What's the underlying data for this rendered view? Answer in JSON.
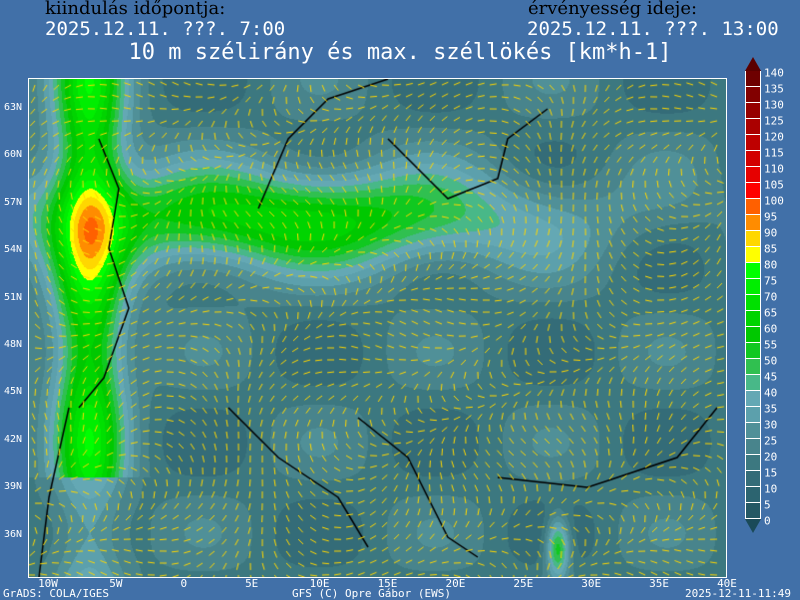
{
  "header": {
    "init_label": "kiindulás időpontja:",
    "init_value": "2025.12.11. ???. 7:00",
    "valid_label": "érvényesség ideje:",
    "valid_value": "2025.12.11. ???. 13:00",
    "title": "10 m szélirány és max. széllökés [km*h-1]"
  },
  "map": {
    "lat_labels": [
      "63N",
      "60N",
      "57N",
      "54N",
      "51N",
      "48N",
      "45N",
      "42N",
      "39N",
      "36N"
    ],
    "lon_labels": [
      "10W",
      "5W",
      "0",
      "5E",
      "10E",
      "15E",
      "20E",
      "25E",
      "30E",
      "35E",
      "40E"
    ],
    "wind_arrow_color": "#ffd700",
    "coastline_color": "#000000"
  },
  "legend": {
    "ticks": [
      "140",
      "135",
      "130",
      "125",
      "120",
      "115",
      "110",
      "105",
      "100",
      "95",
      "90",
      "85",
      "80",
      "75",
      "70",
      "65",
      "60",
      "55",
      "50",
      "45",
      "40",
      "35",
      "30",
      "25",
      "20",
      "15",
      "10",
      "5",
      "0"
    ],
    "colors": [
      "#6e0000",
      "#820000",
      "#960000",
      "#aa0000",
      "#be0000",
      "#d20000",
      "#e60000",
      "#ff0000",
      "#ff6000",
      "#ff8c00",
      "#ffd700",
      "#ffff00",
      "#00ff00",
      "#00ee00",
      "#00e000",
      "#00d400",
      "#00c800",
      "#10c820",
      "#30c050",
      "#48b888",
      "#64a8b4",
      "#5ca0ac",
      "#509098",
      "#48848c",
      "#3c7880",
      "#346c78",
      "#2c6470",
      "#245864"
    ],
    "top_arrow_color": "#5a0000",
    "bottom_arrow_color": "#1a4a58"
  },
  "footer": {
    "left": "GrADS: COLA/IGES",
    "center": "GFS (C) Opre Gábor (EWS)",
    "right": "2025-12-11-11:49"
  }
}
